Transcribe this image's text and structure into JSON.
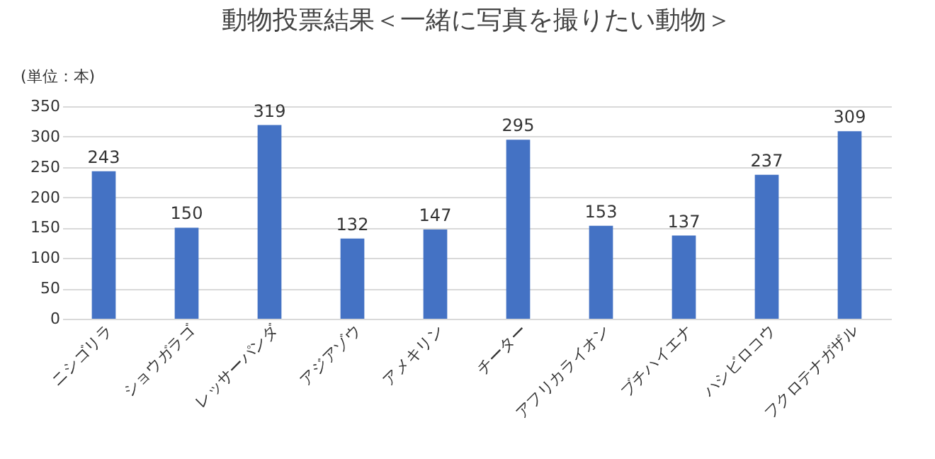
{
  "chart_data": {
    "type": "bar",
    "title": "動物投票結果＜一緒に写真を撮りたい動物＞",
    "ylabel": "(単位：本)",
    "categories": [
      "ニシゴリラ",
      "ショウガラゴ",
      "レッサーパンダ",
      "アジアゾウ",
      "アメキリン",
      "チーター",
      "アフリカライオン",
      "ブチハイエナ",
      "ハシビロコウ",
      "フクロテナガザル"
    ],
    "values": [
      243,
      150,
      319,
      132,
      147,
      295,
      153,
      137,
      237,
      309
    ],
    "color": "#4472c4",
    "ylim": [
      0,
      350
    ],
    "yticks": [
      0,
      50,
      100,
      150,
      200,
      250,
      300,
      350
    ],
    "grid": "y",
    "data_labels": true
  }
}
